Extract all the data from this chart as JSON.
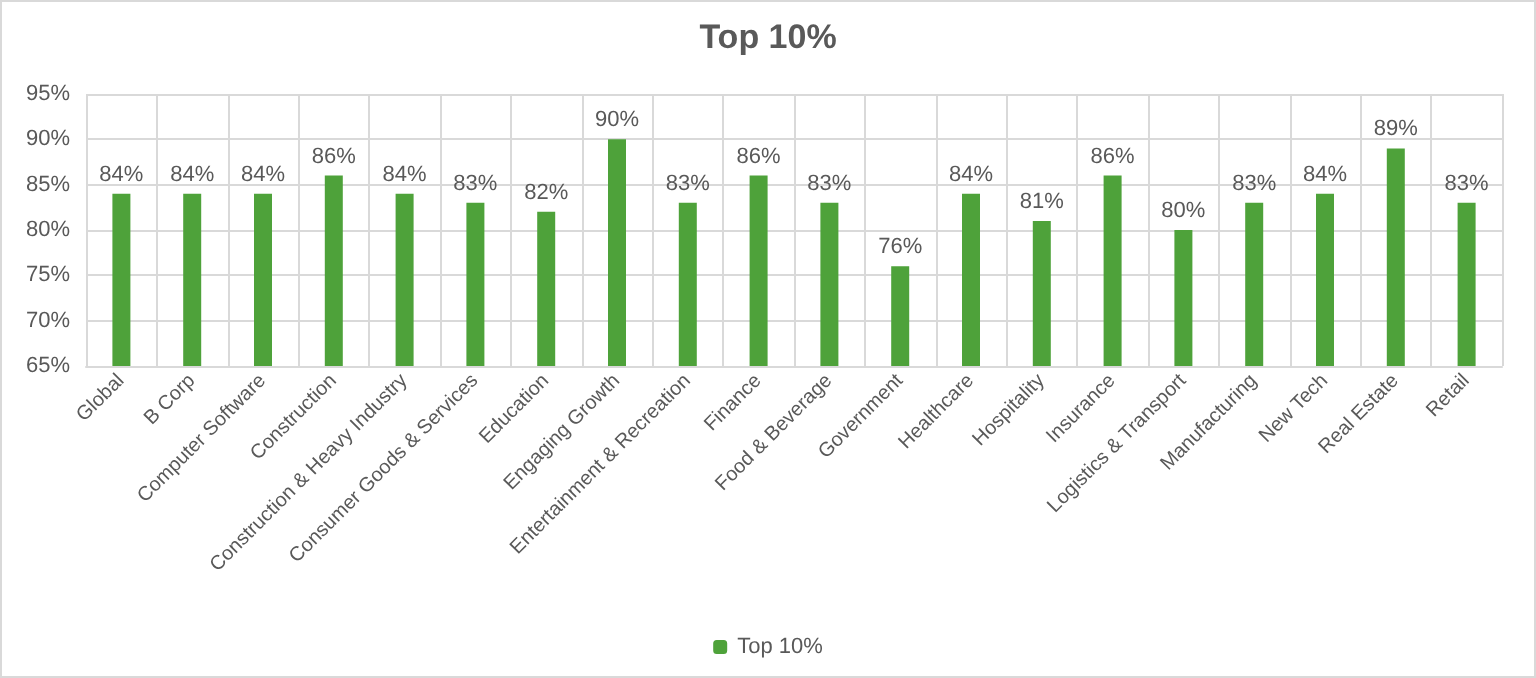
{
  "chart_data": {
    "type": "bar",
    "title": "Top 10%",
    "categories": [
      "Global",
      "B Corp",
      "Computer Software",
      "Construction",
      "Construction & Heavy Industry",
      "Consumer Goods & Services",
      "Education",
      "Engaging Growth",
      "Entertainment & Recreation",
      "Finance",
      "Food & Beverage",
      "Government",
      "Healthcare",
      "Hospitality",
      "Insurance",
      "Logistics & Transport",
      "Manufacturing",
      "New Tech",
      "Real Estate",
      "Retail"
    ],
    "series": [
      {
        "name": "Top 10%",
        "color": "#4ea23a",
        "values": [
          84,
          84,
          84,
          86,
          84,
          83,
          82,
          90,
          83,
          86,
          83,
          76,
          84,
          81,
          86,
          80,
          83,
          84,
          89,
          83
        ],
        "value_labels": [
          "84%",
          "84%",
          "84%",
          "86%",
          "84%",
          "83%",
          "82%",
          "90%",
          "83%",
          "86%",
          "83%",
          "76%",
          "84%",
          "81%",
          "86%",
          "80%",
          "83%",
          "84%",
          "89%",
          "83%"
        ]
      }
    ],
    "ylim": [
      65,
      95
    ],
    "yticks": [
      {
        "value": 65,
        "label": "65%"
      },
      {
        "value": 70,
        "label": "70%"
      },
      {
        "value": 75,
        "label": "75%"
      },
      {
        "value": 80,
        "label": "80%"
      },
      {
        "value": 85,
        "label": "85%"
      },
      {
        "value": 90,
        "label": "90%"
      },
      {
        "value": 95,
        "label": "95%"
      }
    ],
    "grid": true,
    "legend": "bottom"
  }
}
